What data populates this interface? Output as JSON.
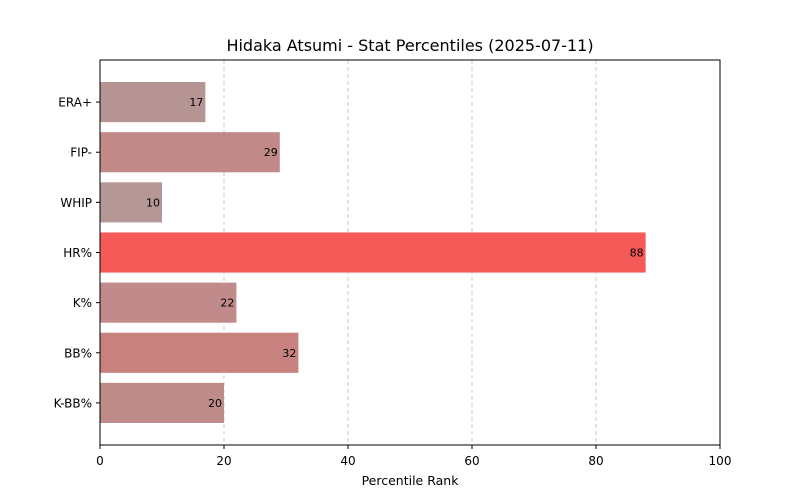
{
  "chart_data": {
    "type": "bar",
    "orientation": "horizontal",
    "title": "Hidaka Atsumi - Stat Percentiles (2025-07-11)",
    "xlabel": "Percentile Rank",
    "ylabel": "",
    "xlim": [
      0,
      100
    ],
    "xticks": [
      0,
      20,
      40,
      60,
      80,
      100
    ],
    "grid": "x-dashed",
    "categories": [
      "ERA+",
      "FIP-",
      "WHIP",
      "HR%",
      "K%",
      "BB%",
      "K-BB%"
    ],
    "values": [
      17,
      29,
      10,
      88,
      22,
      32,
      20
    ],
    "bar_colors": [
      "#b69493",
      "#c18a88",
      "#b59796",
      "#f55a59",
      "#c08b8a",
      "#c7817f",
      "#bf8c8a"
    ]
  }
}
